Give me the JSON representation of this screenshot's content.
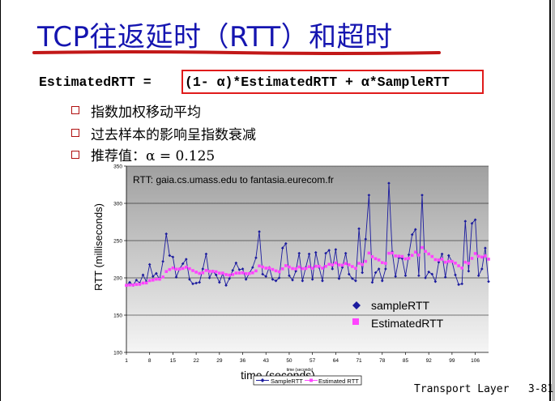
{
  "slide": {
    "title": "TCP往返延时（RTT）和超时",
    "formula_lhs": "EstimatedRTT = ",
    "formula_rhs": "(1- α)*EstimatedRTT + α*SampleRTT",
    "bullets": [
      "指数加权移动平均",
      "过去样本的影响呈指数衰减",
      "推荐值：α = 0.125"
    ],
    "footer_left": "Transport Layer",
    "footer_right": "3-81"
  },
  "colors": {
    "title": "#1515b0",
    "sample": "#1a1a9e",
    "estimated": "#ff44ff",
    "plot_bg_top": "#a0a0a0",
    "plot_bg_bottom": "#f5f5f5",
    "box": "#e01b1b"
  },
  "chart_data": {
    "type": "line",
    "title": "RTT: gaia.cs.umass.edu to fantasia.eurecom.fr",
    "xlabel": "time (seconds)",
    "xlabel_small": "time (seconds)",
    "ylabel": "RTT (milliseconds)",
    "ylim": [
      100,
      350
    ],
    "yticks": [
      100,
      150,
      200,
      250,
      300,
      350
    ],
    "xlim": [
      1,
      110
    ],
    "xticks": [
      1,
      8,
      15,
      22,
      29,
      36,
      43,
      50,
      57,
      64,
      71,
      78,
      85,
      92,
      99,
      106
    ],
    "legend": [
      "sampleRTT",
      "EstimatedRTT"
    ],
    "bottom_legend": [
      "SampleRTT",
      "Estimated RTT"
    ],
    "series": [
      {
        "name": "SampleRTT",
        "x": [
          1,
          2,
          3,
          4,
          5,
          6,
          7,
          8,
          9,
          10,
          11,
          12,
          13,
          14,
          15,
          16,
          17,
          18,
          19,
          20,
          21,
          22,
          23,
          24,
          25,
          26,
          27,
          28,
          29,
          30,
          31,
          32,
          33,
          34,
          35,
          36,
          37,
          38,
          39,
          40,
          41,
          42,
          43,
          44,
          45,
          46,
          47,
          48,
          49,
          50,
          51,
          52,
          53,
          54,
          55,
          56,
          57,
          58,
          59,
          60,
          61,
          62,
          63,
          64,
          65,
          66,
          67,
          68,
          69,
          70,
          71,
          72,
          73,
          74,
          75,
          76,
          77,
          78,
          79,
          80,
          81,
          82,
          83,
          84,
          85,
          86,
          87,
          88,
          89,
          90,
          91,
          92,
          93,
          94,
          95,
          96,
          97,
          98,
          99,
          100,
          101,
          102,
          103,
          104,
          105,
          106,
          107,
          108,
          109,
          110
        ],
        "values": [
          190,
          194,
          190,
          197,
          193,
          204,
          195,
          218,
          202,
          206,
          198,
          222,
          259,
          230,
          228,
          201,
          212,
          219,
          225,
          198,
          192,
          193,
          194,
          212,
          232,
          200,
          209,
          204,
          194,
          206,
          190,
          199,
          210,
          220,
          211,
          212,
          198,
          206,
          214,
          227,
          262,
          205,
          202,
          214,
          198,
          196,
          200,
          240,
          246,
          203,
          197,
          209,
          233,
          196,
          214,
          232,
          198,
          234,
          214,
          196,
          233,
          237,
          212,
          238,
          199,
          214,
          233,
          205,
          199,
          196,
          266,
          207,
          252,
          311,
          194,
          207,
          212,
          196,
          212,
          327,
          235,
          202,
          227,
          226,
          203,
          231,
          258,
          265,
          203,
          311,
          200,
          208,
          205,
          195,
          221,
          232,
          201,
          230,
          222,
          204,
          191,
          192,
          276,
          209,
          273,
          278,
          203,
          212,
          240,
          195
        ]
      },
      {
        "name": "EstimatedRTT",
        "x": [
          1,
          2,
          3,
          4,
          5,
          6,
          7,
          8,
          9,
          10,
          11,
          12,
          13,
          14,
          15,
          16,
          17,
          18,
          19,
          20,
          21,
          22,
          23,
          24,
          25,
          26,
          27,
          28,
          29,
          30,
          31,
          32,
          33,
          34,
          35,
          36,
          37,
          38,
          39,
          40,
          41,
          42,
          43,
          44,
          45,
          46,
          47,
          48,
          49,
          50,
          51,
          52,
          53,
          54,
          55,
          56,
          57,
          58,
          59,
          60,
          61,
          62,
          63,
          64,
          65,
          66,
          67,
          68,
          69,
          70,
          71,
          72,
          73,
          74,
          75,
          76,
          77,
          78,
          79,
          80,
          81,
          82,
          83,
          84,
          85,
          86,
          87,
          88,
          89,
          90,
          91,
          92,
          93,
          94,
          95,
          96,
          97,
          98,
          99,
          100,
          101,
          102,
          103,
          104,
          105,
          106,
          107,
          108,
          109,
          110
        ],
        "values": [
          190,
          190.5,
          190.4,
          191.2,
          191.4,
          193,
          193.2,
          196.3,
          197,
          198.2,
          198.2,
          201.2,
          208.5,
          211.2,
          213.3,
          211.7,
          211.8,
          212.7,
          214.3,
          212.3,
          209.8,
          207.7,
          206,
          206.8,
          210,
          208.8,
          208.8,
          208.2,
          206.4,
          206.4,
          204.4,
          203.7,
          204.5,
          206.4,
          206.5,
          206.7,
          205.6,
          205.7,
          206.8,
          209.4,
          216,
          214.6,
          213,
          213.2,
          211.3,
          209.4,
          208.2,
          212.2,
          216.4,
          214.7,
          212.5,
          212.1,
          214.7,
          212.4,
          212.6,
          215,
          212.9,
          215.6,
          215.4,
          213,
          215.5,
          218.2,
          217.4,
          220,
          217.4,
          217,
          219.3,
          217.5,
          215.2,
          212.8,
          219.5,
          217.9,
          222.2,
          233.3,
          228.4,
          225.7,
          224,
          220.5,
          219.5,
          233,
          233.3,
          229.4,
          229.1,
          228.7,
          225.5,
          226.2,
          230.2,
          234.6,
          230.6,
          240.7,
          235.6,
          232.1,
          228.7,
          224.5,
          224,
          225,
          221,
          222.1,
          222.1,
          219.8,
          216.2,
          213.2,
          221,
          219.5,
          226.2,
          232.7,
          229,
          227.9,
          229.4,
          225.1
        ]
      }
    ]
  }
}
